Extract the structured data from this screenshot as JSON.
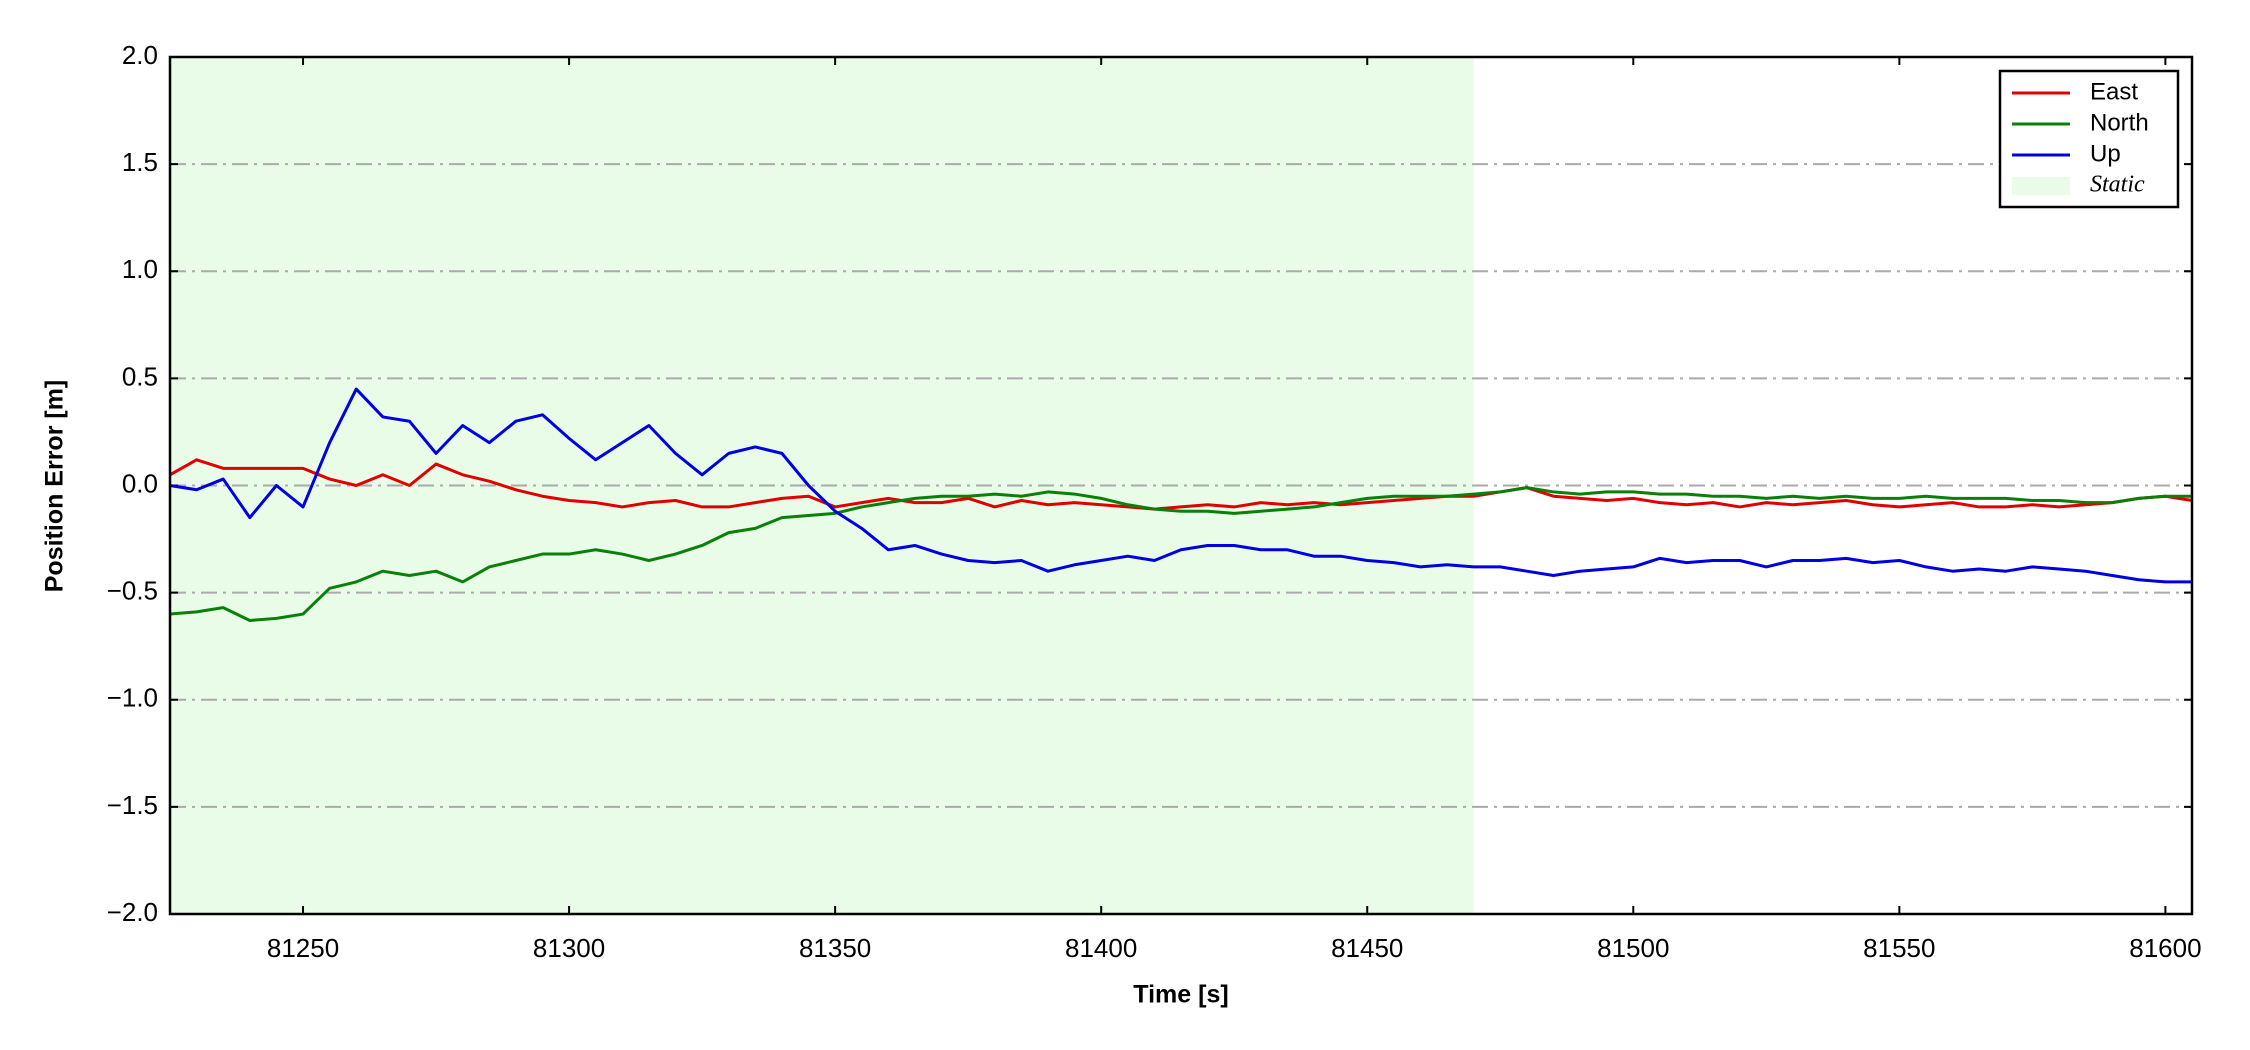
{
  "chart_data": {
    "type": "line",
    "xlabel": "Time [s]",
    "ylabel": "Position Error [m]",
    "x": [
      81225,
      81230,
      81235,
      81240,
      81245,
      81250,
      81255,
      81260,
      81265,
      81270,
      81275,
      81280,
      81285,
      81290,
      81295,
      81300,
      81305,
      81310,
      81315,
      81320,
      81325,
      81330,
      81335,
      81340,
      81345,
      81350,
      81355,
      81360,
      81365,
      81370,
      81375,
      81380,
      81385,
      81390,
      81395,
      81400,
      81405,
      81410,
      81415,
      81420,
      81425,
      81430,
      81435,
      81440,
      81445,
      81450,
      81455,
      81460,
      81465,
      81470,
      81475,
      81480,
      81485,
      81490,
      81495,
      81500,
      81505,
      81510,
      81515,
      81520,
      81525,
      81530,
      81535,
      81540,
      81545,
      81550,
      81555,
      81560,
      81565,
      81570,
      81575,
      81580,
      81585,
      81590,
      81595,
      81600,
      81605
    ],
    "series": [
      {
        "name": "East",
        "color": "#e00000",
        "values": [
          0.05,
          0.12,
          0.08,
          0.08,
          0.08,
          0.08,
          0.03,
          0.0,
          0.05,
          0.0,
          0.1,
          0.05,
          0.02,
          -0.02,
          -0.05,
          -0.07,
          -0.08,
          -0.1,
          -0.08,
          -0.07,
          -0.1,
          -0.1,
          -0.08,
          -0.06,
          -0.05,
          -0.1,
          -0.08,
          -0.06,
          -0.08,
          -0.08,
          -0.06,
          -0.1,
          -0.07,
          -0.09,
          -0.08,
          -0.09,
          -0.1,
          -0.11,
          -0.1,
          -0.09,
          -0.1,
          -0.08,
          -0.09,
          -0.08,
          -0.09,
          -0.08,
          -0.07,
          -0.06,
          -0.05,
          -0.05,
          -0.03,
          -0.01,
          -0.05,
          -0.06,
          -0.07,
          -0.06,
          -0.08,
          -0.09,
          -0.08,
          -0.1,
          -0.08,
          -0.09,
          -0.08,
          -0.07,
          -0.09,
          -0.1,
          -0.09,
          -0.08,
          -0.1,
          -0.1,
          -0.09,
          -0.1,
          -0.09,
          -0.08,
          -0.06,
          -0.05,
          -0.07
        ]
      },
      {
        "name": "North",
        "color": "#0a800a",
        "values": [
          -0.6,
          -0.59,
          -0.57,
          -0.63,
          -0.62,
          -0.6,
          -0.48,
          -0.45,
          -0.4,
          -0.42,
          -0.4,
          -0.45,
          -0.38,
          -0.35,
          -0.32,
          -0.32,
          -0.3,
          -0.32,
          -0.35,
          -0.32,
          -0.28,
          -0.22,
          -0.2,
          -0.15,
          -0.14,
          -0.13,
          -0.1,
          -0.08,
          -0.06,
          -0.05,
          -0.05,
          -0.04,
          -0.05,
          -0.03,
          -0.04,
          -0.06,
          -0.09,
          -0.11,
          -0.12,
          -0.12,
          -0.13,
          -0.12,
          -0.11,
          -0.1,
          -0.08,
          -0.06,
          -0.05,
          -0.05,
          -0.05,
          -0.04,
          -0.03,
          -0.01,
          -0.03,
          -0.04,
          -0.03,
          -0.03,
          -0.04,
          -0.04,
          -0.05,
          -0.05,
          -0.06,
          -0.05,
          -0.06,
          -0.05,
          -0.06,
          -0.06,
          -0.05,
          -0.06,
          -0.06,
          -0.06,
          -0.07,
          -0.07,
          -0.08,
          -0.08,
          -0.06,
          -0.05,
          -0.05
        ]
      },
      {
        "name": "Up",
        "color": "#0000e0",
        "values": [
          0.0,
          -0.02,
          0.03,
          -0.15,
          0.0,
          -0.1,
          0.2,
          0.45,
          0.32,
          0.3,
          0.15,
          0.28,
          0.2,
          0.3,
          0.33,
          0.22,
          0.12,
          0.2,
          0.28,
          0.15,
          0.05,
          0.15,
          0.18,
          0.15,
          0.0,
          -0.12,
          -0.2,
          -0.3,
          -0.28,
          -0.32,
          -0.35,
          -0.36,
          -0.35,
          -0.4,
          -0.37,
          -0.35,
          -0.33,
          -0.35,
          -0.3,
          -0.28,
          -0.28,
          -0.3,
          -0.3,
          -0.33,
          -0.33,
          -0.35,
          -0.36,
          -0.38,
          -0.37,
          -0.38,
          -0.38,
          -0.4,
          -0.42,
          -0.4,
          -0.39,
          -0.38,
          -0.34,
          -0.36,
          -0.35,
          -0.35,
          -0.38,
          -0.35,
          -0.35,
          -0.34,
          -0.36,
          -0.35,
          -0.38,
          -0.4,
          -0.39,
          -0.4,
          -0.38,
          -0.39,
          -0.4,
          -0.42,
          -0.44,
          -0.45,
          -0.45
        ]
      }
    ],
    "span": {
      "name": "Static",
      "color": "#e8fce8",
      "x": [
        81225,
        81470
      ]
    },
    "xlim": [
      81225,
      81605
    ],
    "xticks": [
      81250,
      81300,
      81350,
      81400,
      81450,
      81500,
      81550,
      81600
    ],
    "ylim": [
      -2,
      2
    ],
    "yticks": [
      {
        "value": -2,
        "label": "−2.0"
      },
      {
        "value": -1.5,
        "label": "−1.5"
      },
      {
        "value": -1,
        "label": "−1.0"
      },
      {
        "value": -0.5,
        "label": "−0.5"
      },
      {
        "value": 0,
        "label": "0.0"
      },
      {
        "value": 0.5,
        "label": "0.5"
      },
      {
        "value": 1,
        "label": "1.0"
      },
      {
        "value": 1.5,
        "label": "1.5"
      },
      {
        "value": 2,
        "label": "2.0"
      }
    ],
    "grid": true,
    "legend": "upper right"
  }
}
